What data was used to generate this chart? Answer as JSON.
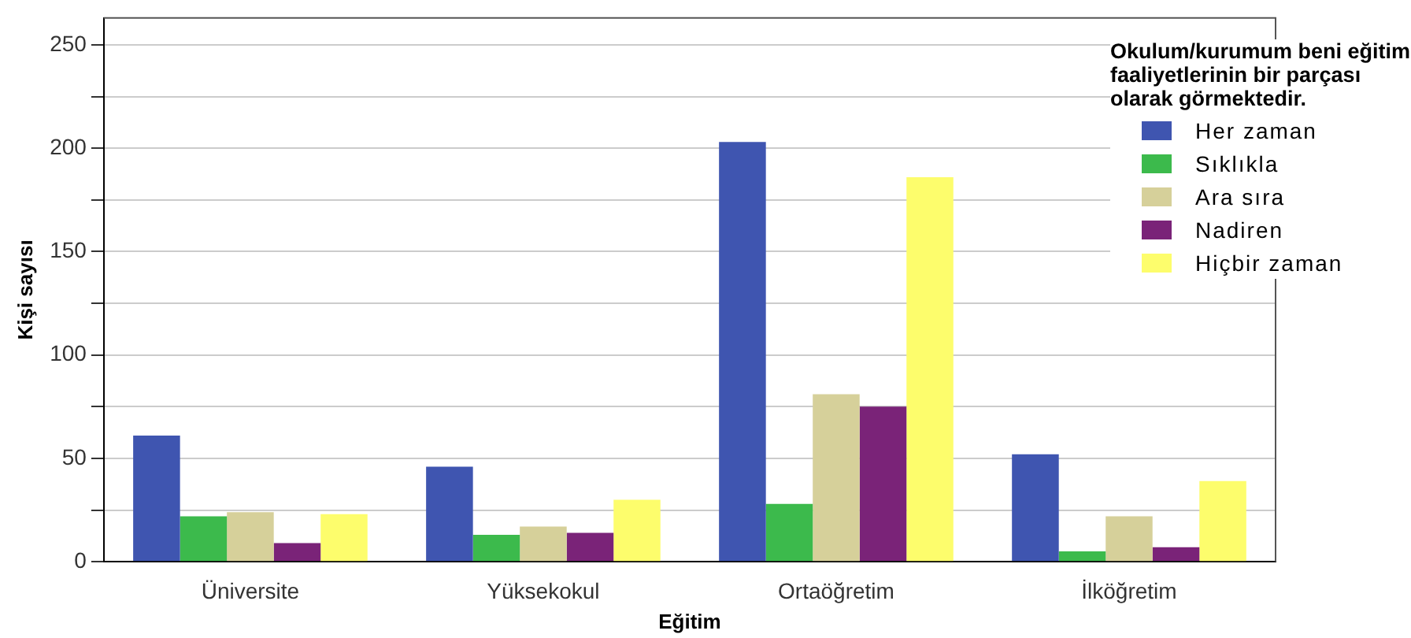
{
  "chart_data": {
    "type": "bar",
    "xlabel": "Eğitim",
    "ylabel": "Kişi sayısı",
    "legend_title": "Okulum/kurumum beni eğitim faaliyetlerinin bir parçası olarak görmektedir.",
    "categories": [
      "Üniversite",
      "Yüksekokul",
      "Ortaöğretim",
      "İlköğretim"
    ],
    "series": [
      {
        "name": "Her zaman",
        "color": "#3f55b0",
        "values": [
          61,
          46,
          203,
          52
        ]
      },
      {
        "name": "Sıklıkla",
        "color": "#3cba4c",
        "values": [
          22,
          13,
          28,
          5
        ]
      },
      {
        "name": "Ara sıra",
        "color": "#d6d09a",
        "values": [
          24,
          17,
          81,
          22
        ]
      },
      {
        "name": "Nadiren",
        "color": "#7a2378",
        "values": [
          9,
          14,
          75,
          7
        ]
      },
      {
        "name": "Hiçbir zaman",
        "color": "#fdfd6c",
        "values": [
          23,
          30,
          186,
          39
        ]
      }
    ],
    "ylim": [
      0,
      263
    ],
    "yticks": [
      0,
      {
        "value": 25,
        "label": null
      },
      50,
      {
        "value": 75,
        "label": null
      },
      100,
      {
        "value": 125,
        "label": null
      },
      150,
      {
        "value": 175,
        "label": null
      },
      200,
      {
        "value": 225,
        "label": null
      },
      250
    ],
    "grid": "y",
    "legend": "right"
  }
}
